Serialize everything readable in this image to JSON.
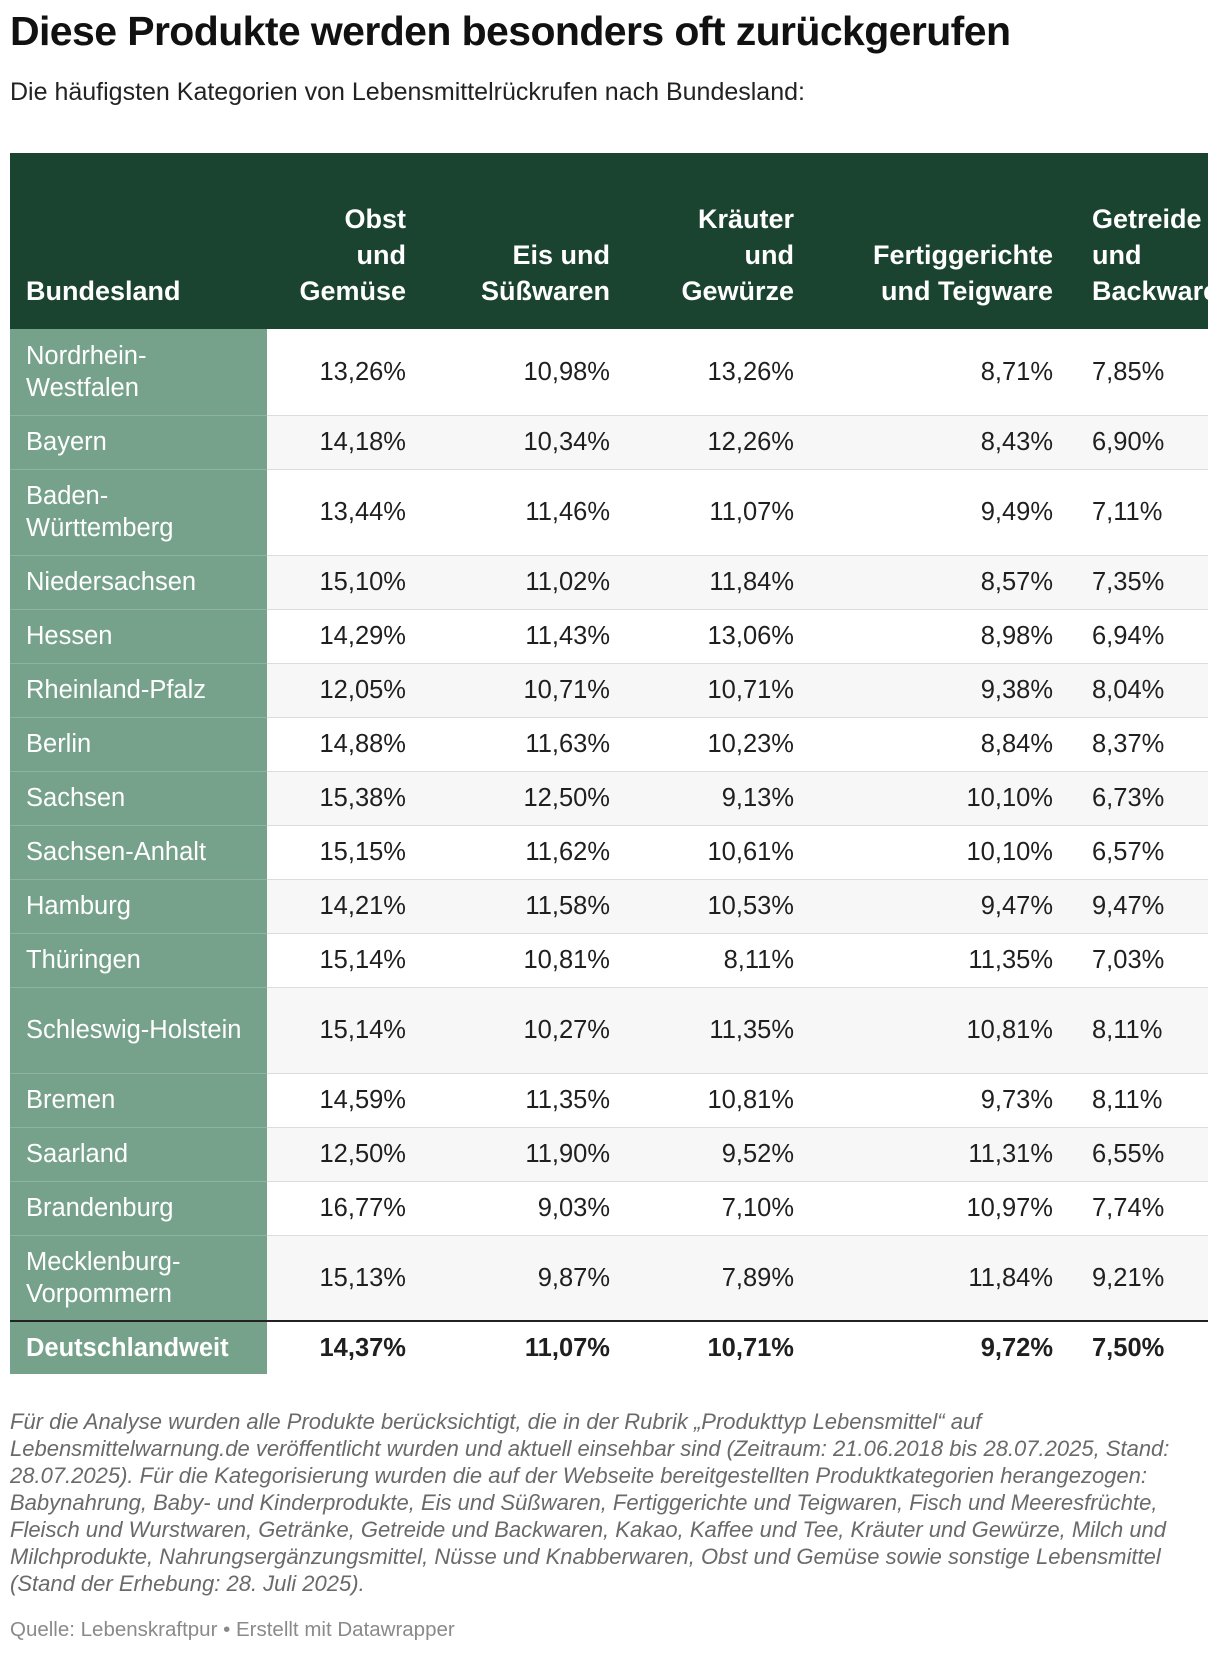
{
  "title": "Diese Produkte werden besonders oft zurückgerufen",
  "subtitle": "Die häufigsten Kategorien von Lebensmittelrückrufen nach Bundesland:",
  "chart_data": {
    "type": "table",
    "columns": [
      {
        "lines": [
          "Bundesland"
        ]
      },
      {
        "lines": [
          "Obst",
          "und",
          "Gemüse"
        ]
      },
      {
        "lines": [
          "Eis und",
          "Süßwaren"
        ]
      },
      {
        "lines": [
          "Kräuter",
          "und",
          "Gewürze"
        ]
      },
      {
        "lines": [
          "Fertiggerichte",
          "und Teigware"
        ]
      },
      {
        "lines": [
          "Getreide",
          "und",
          "Backwaren"
        ]
      }
    ],
    "rows": [
      {
        "state": "Nordrhein-Westfalen",
        "tall": true,
        "values": [
          "13,26%",
          "10,98%",
          "13,26%",
          "8,71%",
          "7,85%"
        ]
      },
      {
        "state": "Bayern",
        "tall": false,
        "values": [
          "14,18%",
          "10,34%",
          "12,26%",
          "8,43%",
          "6,90%"
        ]
      },
      {
        "state": "Baden-Württemberg",
        "tall": true,
        "values": [
          "13,44%",
          "11,46%",
          "11,07%",
          "9,49%",
          "7,11%"
        ]
      },
      {
        "state": "Niedersachsen",
        "tall": false,
        "values": [
          "15,10%",
          "11,02%",
          "11,84%",
          "8,57%",
          "7,35%"
        ]
      },
      {
        "state": "Hessen",
        "tall": false,
        "values": [
          "14,29%",
          "11,43%",
          "13,06%",
          "8,98%",
          "6,94%"
        ]
      },
      {
        "state": "Rheinland-Pfalz",
        "tall": false,
        "values": [
          "12,05%",
          "10,71%",
          "10,71%",
          "9,38%",
          "8,04%"
        ]
      },
      {
        "state": "Berlin",
        "tall": false,
        "values": [
          "14,88%",
          "11,63%",
          "10,23%",
          "8,84%",
          "8,37%"
        ]
      },
      {
        "state": "Sachsen",
        "tall": false,
        "values": [
          "15,38%",
          "12,50%",
          "9,13%",
          "10,10%",
          "6,73%"
        ]
      },
      {
        "state": "Sachsen-Anhalt",
        "tall": false,
        "values": [
          "15,15%",
          "11,62%",
          "10,61%",
          "10,10%",
          "6,57%"
        ]
      },
      {
        "state": "Hamburg",
        "tall": false,
        "values": [
          "14,21%",
          "11,58%",
          "10,53%",
          "9,47%",
          "9,47%"
        ]
      },
      {
        "state": "Thüringen",
        "tall": false,
        "values": [
          "15,14%",
          "10,81%",
          "8,11%",
          "11,35%",
          "7,03%"
        ]
      },
      {
        "state": "Schleswig-Holstein",
        "tall": true,
        "values": [
          "15,14%",
          "10,27%",
          "11,35%",
          "10,81%",
          "8,11%"
        ]
      },
      {
        "state": "Bremen",
        "tall": false,
        "values": [
          "14,59%",
          "11,35%",
          "10,81%",
          "9,73%",
          "8,11%"
        ]
      },
      {
        "state": "Saarland",
        "tall": false,
        "values": [
          "12,50%",
          "11,90%",
          "9,52%",
          "11,31%",
          "6,55%"
        ]
      },
      {
        "state": "Brandenburg",
        "tall": false,
        "values": [
          "16,77%",
          "9,03%",
          "7,10%",
          "10,97%",
          "7,74%"
        ]
      },
      {
        "state": "Mecklenburg-Vorpommern",
        "tall": true,
        "values": [
          "15,13%",
          "9,87%",
          "7,89%",
          "11,84%",
          "9,21%"
        ]
      }
    ],
    "total": {
      "state": "Deutschlandweit",
      "values": [
        "14,37%",
        "11,07%",
        "10,71%",
        "9,72%",
        "7,50%"
      ]
    }
  },
  "notes": "Für die Analyse wurden alle Produkte berücksichtigt, die in der Rubrik „Produkttyp Lebensmittel“ auf Lebensmittelwarnung.de veröffentlicht wurden und aktuell einsehbar sind (Zeitraum: 21.06.2018 bis 28.07.2025, Stand: 28.07.2025). Für die Kategorisierung wurden die auf der Webseite bereitgestellten Produktkategorien herangezogen: Babynahrung, Baby- und Kinderprodukte, Eis und Süßwaren, Fertiggerichte und Teigwaren, Fisch und Meeresfrüchte, Fleisch und Wurstwaren, Getränke, Getreide und Backwaren, Kakao, Kaffee und Tee, Kräuter und Gewürze, Milch und Milchprodukte, Nahrungsergänzungsmittel, Nüsse und Knabberwaren, Obst und Gemüse sowie sonstige Lebensmittel (Stand der Erhebung: 28. Juli 2025).",
  "source": "Quelle: Lebenskraftpur • Erstellt mit Datawrapper"
}
